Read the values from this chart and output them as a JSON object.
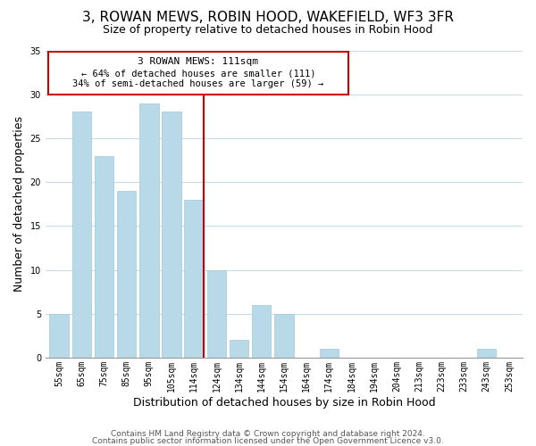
{
  "title": "3, ROWAN MEWS, ROBIN HOOD, WAKEFIELD, WF3 3FR",
  "subtitle": "Size of property relative to detached houses in Robin Hood",
  "xlabel": "Distribution of detached houses by size in Robin Hood",
  "ylabel": "Number of detached properties",
  "bar_labels": [
    "55sqm",
    "65sqm",
    "75sqm",
    "85sqm",
    "95sqm",
    "105sqm",
    "114sqm",
    "124sqm",
    "134sqm",
    "144sqm",
    "154sqm",
    "164sqm",
    "174sqm",
    "184sqm",
    "194sqm",
    "204sqm",
    "213sqm",
    "223sqm",
    "233sqm",
    "243sqm",
    "253sqm"
  ],
  "bar_values": [
    5,
    28,
    23,
    19,
    29,
    28,
    18,
    10,
    2,
    6,
    5,
    0,
    1,
    0,
    0,
    0,
    0,
    0,
    0,
    1,
    0
  ],
  "bar_color": "#b8d9e8",
  "vline_color": "#cc0000",
  "ylim": [
    0,
    35
  ],
  "yticks": [
    0,
    5,
    10,
    15,
    20,
    25,
    30,
    35
  ],
  "annotation_title": "3 ROWAN MEWS: 111sqm",
  "annotation_line1": "← 64% of detached houses are smaller (111)",
  "annotation_line2": "34% of semi-detached houses are larger (59) →",
  "footer1": "Contains HM Land Registry data © Crown copyright and database right 2024.",
  "footer2": "Contains public sector information licensed under the Open Government Licence v3.0.",
  "bg_color": "#ffffff",
  "grid_color": "#c8dce8",
  "title_fontsize": 11,
  "subtitle_fontsize": 9,
  "axis_label_fontsize": 9,
  "tick_fontsize": 7,
  "footer_fontsize": 6.5
}
